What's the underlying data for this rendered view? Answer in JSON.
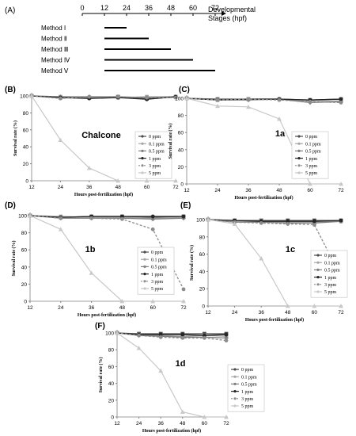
{
  "timeline": {
    "panel_label": "(A)",
    "ticks": [
      0,
      12,
      24,
      36,
      48,
      60,
      72
    ],
    "axis_label_line1": "Developmental",
    "axis_label_line2": "Stages (hpf)",
    "methods": [
      {
        "label": "Method Ⅰ",
        "start": 12,
        "end": 24
      },
      {
        "label": "Method Ⅱ",
        "start": 12,
        "end": 36
      },
      {
        "label": "Method Ⅲ",
        "start": 12,
        "end": 48
      },
      {
        "label": "Method Ⅳ",
        "start": 12,
        "end": 60
      },
      {
        "label": "Method Ⅴ",
        "start": 12,
        "end": 72
      }
    ]
  },
  "legend_entries": [
    "0 ppm",
    "0.1 ppm",
    "0.5 ppm",
    "1 ppm",
    "3 ppm",
    "5 ppm"
  ],
  "series_colors": [
    "#4d4d4d",
    "#a6a6a6",
    "#7f7f7f",
    "#262626",
    "#8c8c8c",
    "#c8c8c8"
  ],
  "chart_data": [
    {
      "panel": "(B)",
      "type": "line",
      "title": "Chalcone",
      "xlabel": "Hours post-fertilization (hpf)",
      "ylabel": "Survival rate (%)",
      "x": [
        12,
        24,
        36,
        48,
        60,
        72
      ],
      "ylim": [
        0,
        100
      ],
      "yticks": [
        0,
        20,
        40,
        60,
        80,
        100
      ],
      "series": [
        {
          "name": "0 ppm",
          "values": [
            100,
            98,
            98,
            99,
            97,
            99
          ]
        },
        {
          "name": "0.1 ppm",
          "values": [
            100,
            99,
            98,
            98,
            99,
            99
          ]
        },
        {
          "name": "0.5 ppm",
          "values": [
            100,
            99,
            99,
            99,
            98,
            99
          ]
        },
        {
          "name": "1 ppm",
          "values": [
            100,
            98,
            97,
            98,
            96,
            99
          ]
        },
        {
          "name": "3 ppm",
          "values": [
            100,
            97,
            99,
            99,
            98,
            98
          ]
        },
        {
          "name": "5 ppm",
          "values": [
            100,
            48,
            15,
            0,
            0,
            0
          ]
        }
      ]
    },
    {
      "panel": "(C)",
      "type": "line",
      "title": "1a",
      "xlabel": "Hours post-fertilization (hpf)",
      "ylabel": "Survival rate (%)",
      "x": [
        12,
        24,
        36,
        48,
        60,
        72
      ],
      "ylim": [
        0,
        100
      ],
      "yticks": [
        0,
        20,
        40,
        60,
        80,
        100
      ],
      "series": [
        {
          "name": "0 ppm",
          "values": [
            100,
            99,
            99,
            99,
            98,
            99
          ]
        },
        {
          "name": "0.1 ppm",
          "values": [
            100,
            98,
            99,
            99,
            97,
            97
          ]
        },
        {
          "name": "0.5 ppm",
          "values": [
            100,
            98,
            98,
            99,
            95,
            96
          ]
        },
        {
          "name": "1 ppm",
          "values": [
            100,
            98,
            99,
            99,
            98,
            99
          ]
        },
        {
          "name": "3 ppm",
          "values": [
            100,
            98,
            99,
            98,
            96,
            95
          ]
        },
        {
          "name": "5 ppm",
          "values": [
            100,
            91,
            90,
            76,
            0,
            0
          ]
        }
      ]
    },
    {
      "panel": "(D)",
      "type": "line",
      "title": "1b",
      "xlabel": "Hours post-fertilization (hpf)",
      "ylabel": "Survival rate (%)",
      "x": [
        12,
        24,
        36,
        48,
        60,
        72
      ],
      "ylim": [
        0,
        100
      ],
      "yticks": [
        0,
        20,
        40,
        60,
        80,
        100
      ],
      "series": [
        {
          "name": "0 ppm",
          "values": [
            100,
            98,
            99,
            99,
            98,
            99
          ]
        },
        {
          "name": "0.1 ppm",
          "values": [
            100,
            99,
            98,
            98,
            97,
            98
          ]
        },
        {
          "name": "0.5 ppm",
          "values": [
            100,
            97,
            97,
            97,
            96,
            97
          ]
        },
        {
          "name": "1 ppm",
          "values": [
            100,
            98,
            99,
            99,
            99,
            99
          ]
        },
        {
          "name": "3 ppm",
          "values": [
            100,
            97,
            97,
            96,
            84,
            14
          ]
        },
        {
          "name": "5 ppm",
          "values": [
            100,
            84,
            33,
            0,
            0,
            0
          ]
        }
      ]
    },
    {
      "panel": "(E)",
      "type": "line",
      "title": "1c",
      "xlabel": "Hours post-fertilization (hpf)",
      "ylabel": "Survival rate (%)",
      "x": [
        12,
        24,
        36,
        48,
        60,
        72
      ],
      "ylim": [
        0,
        100
      ],
      "yticks": [
        0,
        20,
        40,
        60,
        80,
        100
      ],
      "series": [
        {
          "name": "0 ppm",
          "values": [
            100,
            99,
            99,
            99,
            99,
            99
          ]
        },
        {
          "name": "0.1 ppm",
          "values": [
            100,
            98,
            98,
            97,
            97,
            98
          ]
        },
        {
          "name": "0.5 ppm",
          "values": [
            100,
            97,
            97,
            96,
            96,
            98
          ]
        },
        {
          "name": "1 ppm",
          "values": [
            100,
            99,
            98,
            98,
            98,
            99
          ]
        },
        {
          "name": "3 ppm",
          "values": [
            100,
            97,
            96,
            95,
            94,
            34
          ]
        },
        {
          "name": "5 ppm",
          "values": [
            100,
            95,
            55,
            0,
            0,
            0
          ]
        }
      ]
    },
    {
      "panel": "(F)",
      "type": "line",
      "title": "1d",
      "xlabel": "Hours post-fertilization (hpf)",
      "ylabel": "Survival rate (%)",
      "x": [
        12,
        24,
        36,
        48,
        60,
        72
      ],
      "ylim": [
        0,
        100
      ],
      "yticks": [
        0,
        20,
        40,
        60,
        80,
        100
      ],
      "series": [
        {
          "name": "0 ppm",
          "values": [
            100,
            99,
            99,
            99,
            99,
            99
          ]
        },
        {
          "name": "0.1 ppm",
          "values": [
            100,
            98,
            97,
            96,
            97,
            96
          ]
        },
        {
          "name": "0.5 ppm",
          "values": [
            100,
            97,
            96,
            95,
            95,
            94
          ]
        },
        {
          "name": "1 ppm",
          "values": [
            100,
            98,
            98,
            98,
            97,
            98
          ]
        },
        {
          "name": "3 ppm",
          "values": [
            100,
            97,
            95,
            94,
            94,
            91
          ]
        },
        {
          "name": "5 ppm",
          "values": [
            100,
            82,
            55,
            6,
            0,
            0
          ]
        }
      ]
    }
  ]
}
